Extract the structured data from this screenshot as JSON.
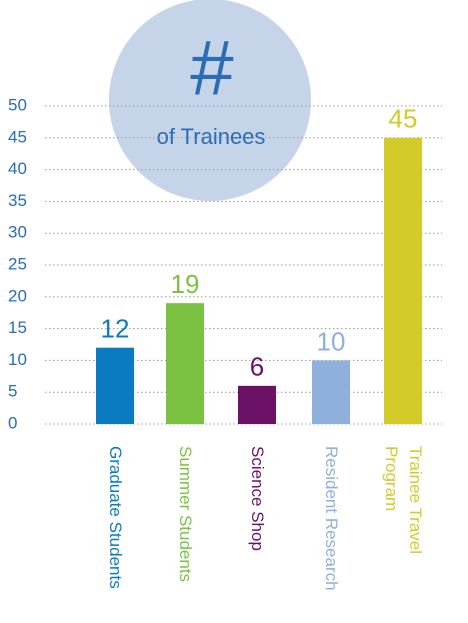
{
  "chart_data": {
    "type": "bar",
    "title": "#",
    "subtitle": "of Trainees",
    "categories": [
      "Graduate Students",
      "Summer Students",
      "Science Shop",
      "Resident Research",
      "Trainee Travel Program"
    ],
    "values": [
      12,
      19,
      6,
      10,
      45
    ],
    "colors": [
      "#0a7bc1",
      "#7bc242",
      "#6b1166",
      "#8fb0da",
      "#d2cb2a"
    ],
    "ylim": [
      0,
      50
    ],
    "yticks": [
      0,
      5,
      10,
      15,
      20,
      25,
      30,
      35,
      40,
      45,
      50
    ],
    "grid": true
  }
}
